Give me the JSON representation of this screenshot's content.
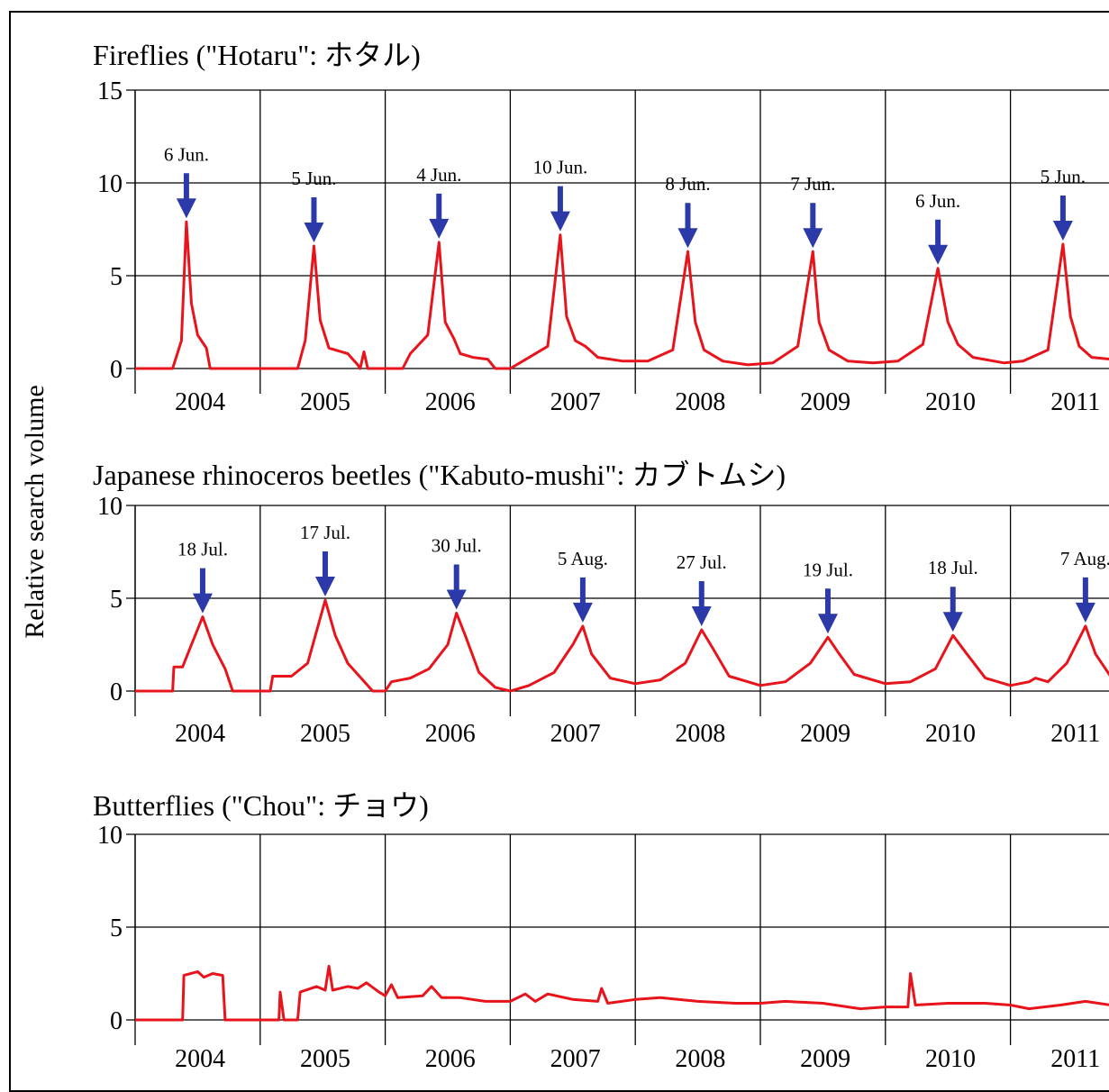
{
  "ylabel": "Relative search volume",
  "colors": {
    "line": "#e8141c",
    "arrow": "#2b3aa8",
    "grid": "#000000"
  },
  "years": [
    "2004",
    "2005",
    "2006",
    "2007",
    "2008",
    "2009",
    "2010",
    "2011"
  ],
  "chart_data": [
    {
      "type": "line",
      "title": "Fireflies (\"Hotaru\": ホタル)",
      "ylim": [
        0,
        15
      ],
      "yticks": [
        "0",
        "5",
        "10",
        "15"
      ],
      "series": [
        {
          "values": [
            [
              2004.0,
              0
            ],
            [
              2004.3,
              0
            ],
            [
              2004.37,
              1.5
            ],
            [
              2004.41,
              7.9
            ],
            [
              2004.45,
              3.5
            ],
            [
              2004.5,
              1.8
            ],
            [
              2004.57,
              1.1
            ],
            [
              2004.6,
              0
            ],
            [
              2005.0,
              0
            ],
            [
              2005.3,
              0
            ],
            [
              2005.36,
              1.5
            ],
            [
              2005.43,
              6.6
            ],
            [
              2005.48,
              2.6
            ],
            [
              2005.55,
              1.1
            ],
            [
              2005.7,
              0.8
            ],
            [
              2005.78,
              0.2
            ],
            [
              2005.8,
              0
            ],
            [
              2005.83,
              0.9
            ],
            [
              2005.86,
              0
            ],
            [
              2006.0,
              0
            ],
            [
              2006.14,
              0
            ],
            [
              2006.2,
              0.8
            ],
            [
              2006.34,
              1.8
            ],
            [
              2006.43,
              6.8
            ],
            [
              2006.48,
              2.5
            ],
            [
              2006.55,
              1.6
            ],
            [
              2006.6,
              0.8
            ],
            [
              2006.7,
              0.6
            ],
            [
              2006.82,
              0.5
            ],
            [
              2006.88,
              0
            ],
            [
              2007.0,
              0
            ],
            [
              2007.1,
              0.4
            ],
            [
              2007.3,
              1.2
            ],
            [
              2007.4,
              7.2
            ],
            [
              2007.45,
              2.8
            ],
            [
              2007.52,
              1.5
            ],
            [
              2007.6,
              1.2
            ],
            [
              2007.7,
              0.6
            ],
            [
              2007.9,
              0.4
            ],
            [
              2008.1,
              0.4
            ],
            [
              2008.3,
              1.0
            ],
            [
              2008.42,
              6.3
            ],
            [
              2008.48,
              2.5
            ],
            [
              2008.55,
              1.0
            ],
            [
              2008.7,
              0.4
            ],
            [
              2008.9,
              0.2
            ],
            [
              2009.1,
              0.3
            ],
            [
              2009.3,
              1.2
            ],
            [
              2009.42,
              6.3
            ],
            [
              2009.47,
              2.5
            ],
            [
              2009.55,
              1.0
            ],
            [
              2009.7,
              0.4
            ],
            [
              2009.9,
              0.3
            ],
            [
              2010.1,
              0.4
            ],
            [
              2010.3,
              1.3
            ],
            [
              2010.42,
              5.4
            ],
            [
              2010.5,
              2.5
            ],
            [
              2010.58,
              1.3
            ],
            [
              2010.7,
              0.6
            ],
            [
              2010.95,
              0.3
            ],
            [
              2011.1,
              0.4
            ],
            [
              2011.3,
              1.0
            ],
            [
              2011.42,
              6.7
            ],
            [
              2011.48,
              2.8
            ],
            [
              2011.55,
              1.2
            ],
            [
              2011.65,
              0.6
            ],
            [
              2011.8,
              0.5
            ]
          ]
        }
      ],
      "annotations": [
        {
          "label": "6 Jun.",
          "x": 2004.41,
          "y": 7.9
        },
        {
          "label": "5 Jun.",
          "x": 2005.43,
          "y": 6.6
        },
        {
          "label": "4 Jun.",
          "x": 2006.43,
          "y": 6.8
        },
        {
          "label": "10 Jun.",
          "x": 2007.4,
          "y": 7.2
        },
        {
          "label": "8 Jun.",
          "x": 2008.42,
          "y": 6.3
        },
        {
          "label": "7 Jun.",
          "x": 2009.42,
          "y": 6.3
        },
        {
          "label": "6 Jun.",
          "x": 2010.42,
          "y": 5.4
        },
        {
          "label": "5 Jun.",
          "x": 2011.42,
          "y": 6.7
        }
      ]
    },
    {
      "type": "line",
      "title": "Japanese rhinoceros beetles  (\"Kabuto-mushi\": カブトムシ)",
      "ylim": [
        0,
        10
      ],
      "yticks": [
        "0",
        "5",
        "10"
      ],
      "series": [
        {
          "values": [
            [
              2004.0,
              0
            ],
            [
              2004.3,
              0
            ],
            [
              2004.31,
              1.3
            ],
            [
              2004.38,
              1.3
            ],
            [
              2004.45,
              2.5
            ],
            [
              2004.54,
              4.0
            ],
            [
              2004.62,
              2.5
            ],
            [
              2004.72,
              1.2
            ],
            [
              2004.78,
              0
            ],
            [
              2005.0,
              0
            ],
            [
              2005.08,
              0
            ],
            [
              2005.1,
              0.8
            ],
            [
              2005.25,
              0.8
            ],
            [
              2005.38,
              1.5
            ],
            [
              2005.52,
              4.9
            ],
            [
              2005.6,
              3.0
            ],
            [
              2005.7,
              1.5
            ],
            [
              2005.82,
              0.6
            ],
            [
              2005.9,
              0
            ],
            [
              2006.0,
              0
            ],
            [
              2006.05,
              0.5
            ],
            [
              2006.2,
              0.7
            ],
            [
              2006.35,
              1.2
            ],
            [
              2006.5,
              2.5
            ],
            [
              2006.57,
              4.2
            ],
            [
              2006.64,
              3.0
            ],
            [
              2006.75,
              1.0
            ],
            [
              2006.88,
              0.2
            ],
            [
              2007.0,
              0
            ],
            [
              2007.15,
              0.3
            ],
            [
              2007.35,
              1.0
            ],
            [
              2007.5,
              2.5
            ],
            [
              2007.58,
              3.5
            ],
            [
              2007.65,
              2.0
            ],
            [
              2007.8,
              0.7
            ],
            [
              2008.0,
              0.4
            ],
            [
              2008.2,
              0.6
            ],
            [
              2008.4,
              1.5
            ],
            [
              2008.53,
              3.3
            ],
            [
              2008.62,
              2.3
            ],
            [
              2008.75,
              0.8
            ],
            [
              2009.0,
              0.3
            ],
            [
              2009.2,
              0.5
            ],
            [
              2009.4,
              1.5
            ],
            [
              2009.54,
              2.9
            ],
            [
              2009.62,
              2.1
            ],
            [
              2009.75,
              0.9
            ],
            [
              2010.0,
              0.4
            ],
            [
              2010.2,
              0.5
            ],
            [
              2010.4,
              1.2
            ],
            [
              2010.54,
              3.0
            ],
            [
              2010.64,
              2.1
            ],
            [
              2010.8,
              0.7
            ],
            [
              2011.0,
              0.3
            ],
            [
              2011.15,
              0.5
            ],
            [
              2011.2,
              0.7
            ],
            [
              2011.3,
              0.5
            ],
            [
              2011.45,
              1.5
            ],
            [
              2011.6,
              3.5
            ],
            [
              2011.68,
              2.0
            ],
            [
              2011.8,
              0.8
            ]
          ]
        }
      ],
      "annotations": [
        {
          "label": "18 Jul.",
          "x": 2004.54,
          "y": 4.0
        },
        {
          "label": "17 Jul.",
          "x": 2005.52,
          "y": 4.9
        },
        {
          "label": "30 Jul.",
          "x": 2006.57,
          "y": 4.2
        },
        {
          "label": "5 Aug.",
          "x": 2007.58,
          "y": 3.5
        },
        {
          "label": "27 Jul.",
          "x": 2008.53,
          "y": 3.3
        },
        {
          "label": "19 Jul.",
          "x": 2009.54,
          "y": 2.9
        },
        {
          "label": "18 Jul.",
          "x": 2010.54,
          "y": 3.0
        },
        {
          "label": "7 Aug.",
          "x": 2011.6,
          "y": 3.5
        }
      ]
    },
    {
      "type": "line",
      "title": "Butterflies  (\"Chou\": チョウ)",
      "ylim": [
        0,
        10
      ],
      "yticks": [
        "0",
        "5",
        "10"
      ],
      "series": [
        {
          "values": [
            [
              2004.0,
              0
            ],
            [
              2004.38,
              0
            ],
            [
              2004.39,
              2.4
            ],
            [
              2004.5,
              2.6
            ],
            [
              2004.55,
              2.3
            ],
            [
              2004.62,
              2.5
            ],
            [
              2004.7,
              2.4
            ],
            [
              2004.72,
              0
            ],
            [
              2005.0,
              0
            ],
            [
              2005.15,
              0
            ],
            [
              2005.16,
              1.5
            ],
            [
              2005.19,
              0
            ],
            [
              2005.3,
              0
            ],
            [
              2005.32,
              1.5
            ],
            [
              2005.45,
              1.8
            ],
            [
              2005.52,
              1.6
            ],
            [
              2005.55,
              2.9
            ],
            [
              2005.58,
              1.6
            ],
            [
              2005.7,
              1.8
            ],
            [
              2005.78,
              1.7
            ],
            [
              2005.85,
              2.0
            ],
            [
              2005.95,
              1.5
            ],
            [
              2006.0,
              1.3
            ],
            [
              2006.05,
              1.9
            ],
            [
              2006.1,
              1.2
            ],
            [
              2006.3,
              1.3
            ],
            [
              2006.37,
              1.8
            ],
            [
              2006.45,
              1.2
            ],
            [
              2006.6,
              1.2
            ],
            [
              2006.8,
              1.0
            ],
            [
              2007.0,
              1.0
            ],
            [
              2007.12,
              1.4
            ],
            [
              2007.2,
              1.0
            ],
            [
              2007.3,
              1.4
            ],
            [
              2007.5,
              1.1
            ],
            [
              2007.7,
              1.0
            ],
            [
              2007.73,
              1.7
            ],
            [
              2007.78,
              0.9
            ],
            [
              2008.0,
              1.1
            ],
            [
              2008.2,
              1.2
            ],
            [
              2008.5,
              1.0
            ],
            [
              2008.8,
              0.9
            ],
            [
              2009.0,
              0.9
            ],
            [
              2009.2,
              1.0
            ],
            [
              2009.5,
              0.9
            ],
            [
              2009.8,
              0.6
            ],
            [
              2010.0,
              0.7
            ],
            [
              2010.18,
              0.7
            ],
            [
              2010.2,
              2.5
            ],
            [
              2010.24,
              0.8
            ],
            [
              2010.5,
              0.9
            ],
            [
              2010.8,
              0.9
            ],
            [
              2011.0,
              0.8
            ],
            [
              2011.15,
              0.6
            ],
            [
              2011.4,
              0.8
            ],
            [
              2011.6,
              1.0
            ],
            [
              2011.8,
              0.8
            ]
          ]
        }
      ],
      "annotations": []
    }
  ]
}
